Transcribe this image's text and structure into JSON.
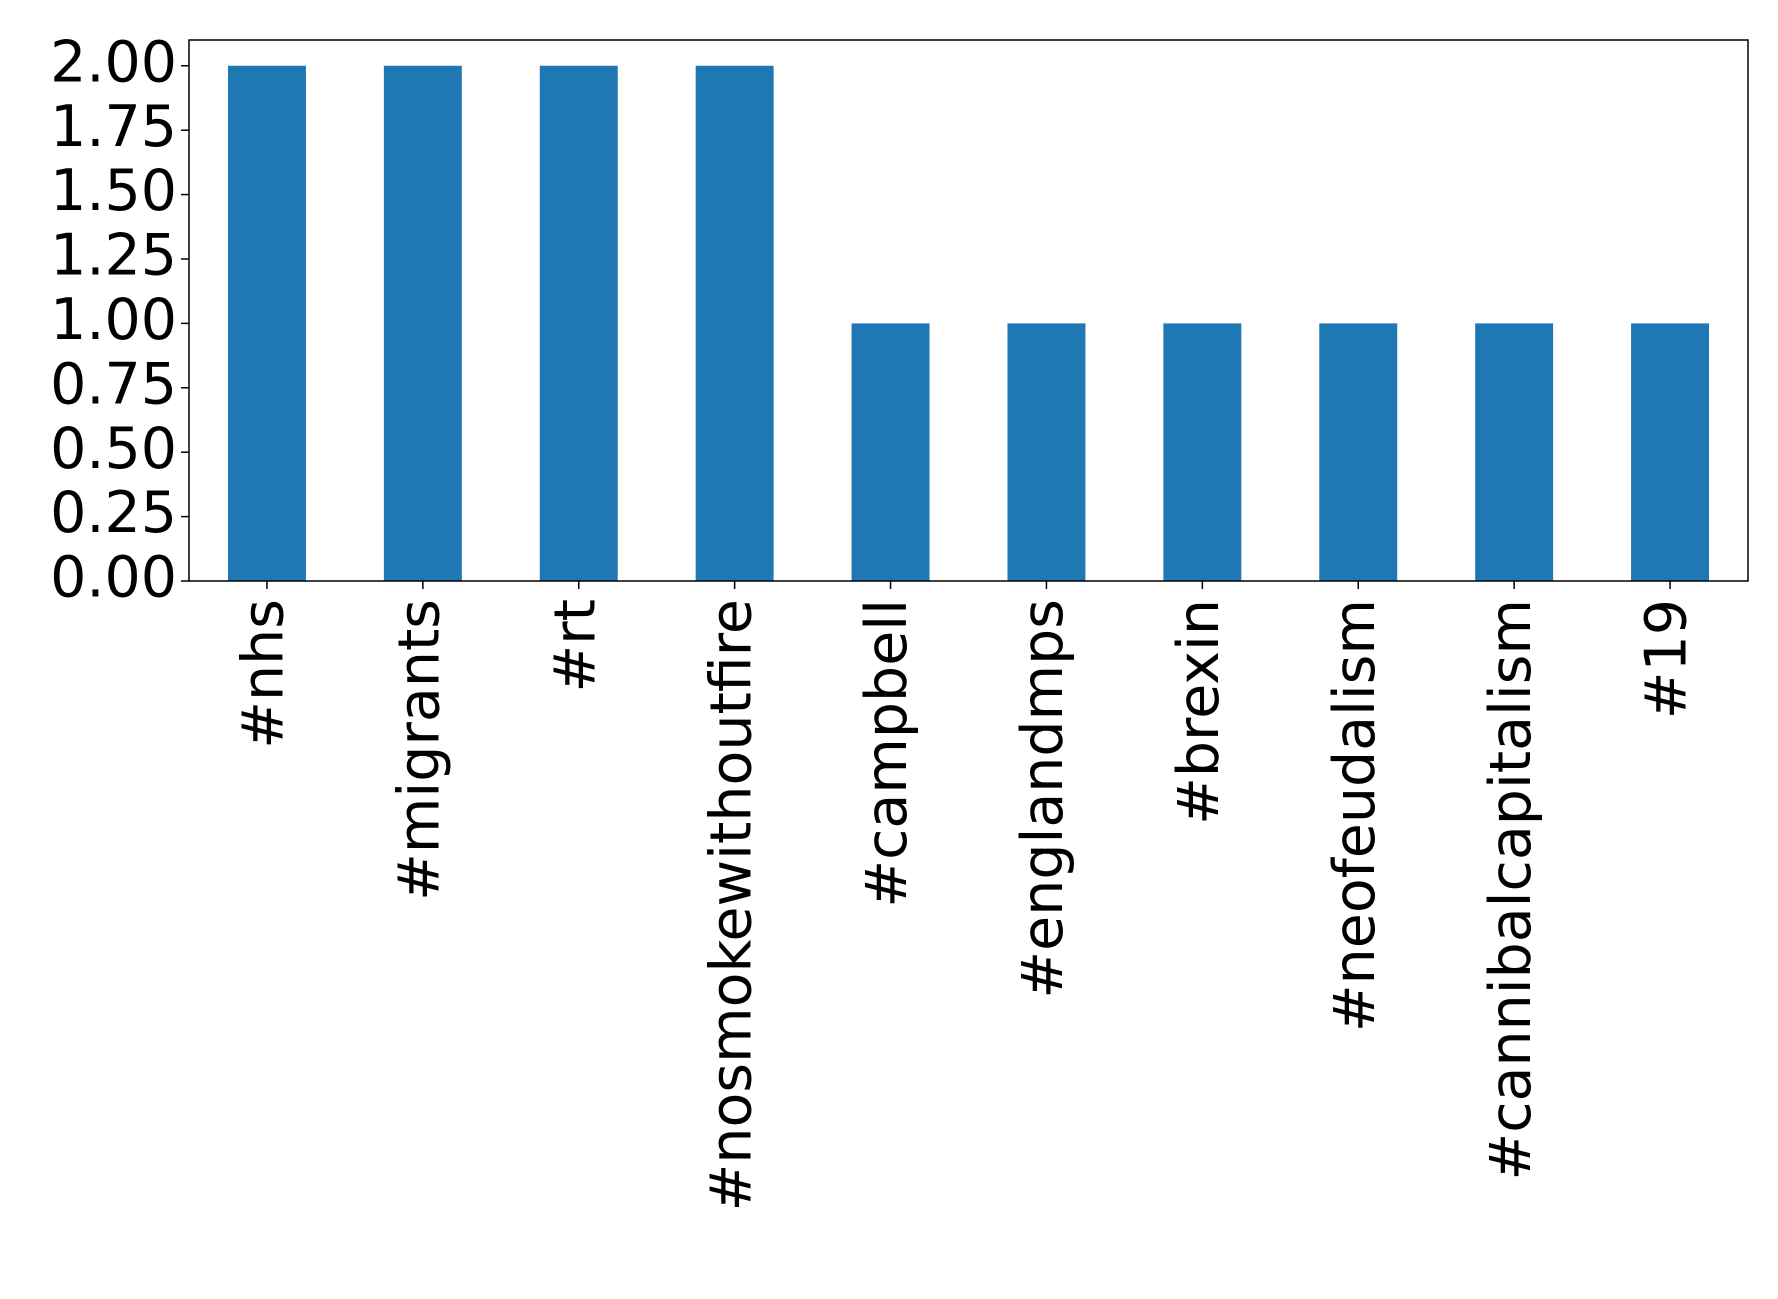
{
  "chart_data": {
    "type": "bar",
    "categories": [
      "#nhs",
      "#migrants",
      "#rt",
      "#nosmokewithoutfire",
      "#campbell",
      "#englandmps",
      "#brexin",
      "#neofeudalism",
      "#cannibalcapitalism",
      "#19"
    ],
    "values": [
      2,
      2,
      2,
      2,
      1,
      1,
      1,
      1,
      1,
      1
    ],
    "color": "#1f77b4",
    "ylim": [
      0,
      2.1
    ],
    "yticks": [
      {
        "value": 0,
        "label": "0.00"
      },
      {
        "value": 0.25,
        "label": "0.25"
      },
      {
        "value": 0.5,
        "label": "0.50"
      },
      {
        "value": 0.75,
        "label": "0.75"
      },
      {
        "value": 1,
        "label": "1.00"
      },
      {
        "value": 1.25,
        "label": "1.25"
      },
      {
        "value": 1.5,
        "label": "1.50"
      },
      {
        "value": 1.75,
        "label": "1.75"
      },
      {
        "value": 2,
        "label": "2.00"
      }
    ],
    "grid": false
  }
}
